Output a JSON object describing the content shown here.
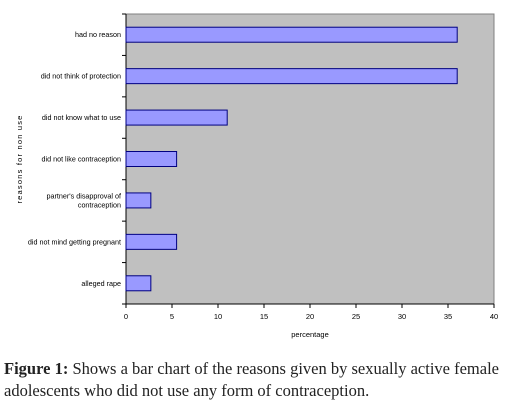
{
  "chart_data": {
    "type": "bar",
    "orientation": "horizontal",
    "categories": [
      "had no reason",
      "did not think of protection",
      "did not know what to use",
      "did not like contraception",
      "partner's disapproval of contraception",
      "did not mind getting pregnant",
      "alleged rape"
    ],
    "category_lines": [
      [
        "had no reason"
      ],
      [
        "did not think of protection"
      ],
      [
        "did not know what to use"
      ],
      [
        "did not like contraception"
      ],
      [
        "partner's disapproval of",
        "contraception"
      ],
      [
        "did not mind getting pregnant"
      ],
      [
        "alleged rape"
      ]
    ],
    "values": [
      36,
      36,
      11,
      5.5,
      2.7,
      5.5,
      2.7
    ],
    "xlabel": "percentage",
    "ylabel": "reasons for non use",
    "xlim": [
      0,
      40
    ],
    "xticks": [
      "0",
      "5",
      "10",
      "15",
      "20",
      "25",
      "30",
      "35",
      "40"
    ],
    "grid": false,
    "legend": "none",
    "colors": {
      "plot_background": "#c0c0c0",
      "bar_fill": "#9999ff",
      "bar_stroke": "#000080"
    }
  },
  "caption": {
    "label": "Figure 1:",
    "text": " Shows a bar chart of the reasons given by sexually active female adolescents who did not use any form of contraception."
  }
}
